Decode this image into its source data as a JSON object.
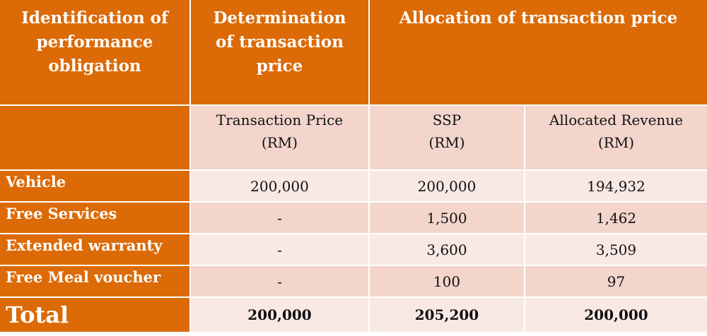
{
  "header": {
    "col1": [
      "Identification of",
      "performance",
      "obligation"
    ],
    "col2": [
      "Determination",
      "of transaction",
      "price"
    ],
    "col3": "Allocation of transaction price"
  },
  "subheader": {
    "transaction_price": [
      "Transaction Price",
      "(RM)"
    ],
    "ssp": [
      "SSP",
      "(RM)"
    ],
    "allocated_revenue": [
      "Allocated Revenue",
      "(RM)"
    ]
  },
  "rows": [
    {
      "label": "Vehicle",
      "transaction_price": "200,000",
      "ssp": "200,000",
      "allocated": "194,932"
    },
    {
      "label": "Free Services",
      "transaction_price": "-",
      "ssp": "1,500",
      "allocated": "1,462"
    },
    {
      "label": "Extended warranty",
      "transaction_price": "-",
      "ssp": "3,600",
      "allocated": "3,509"
    },
    {
      "label": "Free Meal voucher",
      "transaction_price": "-",
      "ssp": "100",
      "allocated": "97"
    }
  ],
  "total": {
    "label": "Total",
    "transaction_price": "200,000",
    "ssp": "205,200",
    "allocated": "200,000"
  },
  "colors": {
    "header_orange": "#dc6a06",
    "row_dark": "#f3d5cc",
    "row_light": "#f9e9e5"
  }
}
